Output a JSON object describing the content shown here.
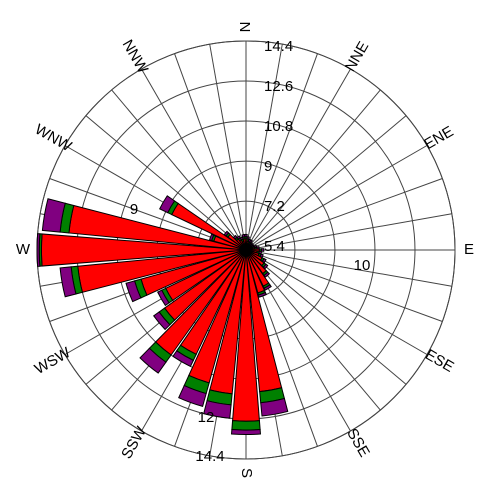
{
  "chart_data": {
    "type": "windrose",
    "x": [
      0,
      10,
      20,
      30,
      40,
      50,
      60,
      70,
      80,
      90,
      100,
      110,
      120,
      130,
      140,
      150,
      160,
      170,
      180,
      190,
      200,
      210,
      220,
      230,
      240,
      250,
      260,
      270,
      280,
      290,
      300,
      310,
      320,
      330,
      340,
      350
    ],
    "xlim": [
      0,
      360
    ],
    "xticks": [
      {
        "value": 0,
        "label": "N"
      },
      {
        "value": 30,
        "label": "NNE"
      },
      {
        "value": 60,
        "label": "ENE"
      },
      {
        "value": 90,
        "label": "E"
      },
      {
        "value": 120,
        "label": "ESE"
      },
      {
        "value": 150,
        "label": "SSE"
      },
      {
        "value": 180,
        "label": "S"
      },
      {
        "value": 210,
        "label": "SSW"
      },
      {
        "value": 240,
        "label": "WSW"
      },
      {
        "value": 270,
        "label": "W"
      },
      {
        "value": 300,
        "label": "WNW"
      },
      {
        "value": 330,
        "label": "NNW"
      }
    ],
    "ylim": [
      5,
      14.4
    ],
    "yticks": [
      5.4,
      7.2,
      9,
      10.8,
      12.6,
      14.4
    ],
    "grid": true,
    "series": [
      {
        "color": "#ff0000",
        "values": [
          5.5,
          5.4,
          5.3,
          5.3,
          5.2,
          5.2,
          5.2,
          5.3,
          5.4,
          5.6,
          5.5,
          5.6,
          5.8,
          6.0,
          6.3,
          6.8,
          7.0,
          11.4,
          12.7,
          11.5,
          11.2,
          10.2,
          10.8,
          9.5,
          9.0,
          9.9,
          12.6,
          14.2,
          13.0,
          6.5,
          8.7,
          6.0,
          5.6,
          5.5,
          5.4,
          5.5
        ]
      },
      {
        "color": "#008000",
        "values": [
          0.1,
          0.1,
          0.1,
          0.1,
          0.1,
          0.1,
          0.1,
          0.1,
          0.1,
          0.1,
          0.1,
          0.1,
          0.1,
          0.1,
          0.1,
          0.1,
          0.1,
          0.5,
          0.4,
          0.5,
          0.5,
          0.3,
          0.4,
          0.3,
          0.2,
          0.3,
          0.3,
          0.1,
          0.4,
          0.1,
          0.2,
          0.1,
          0.1,
          0.1,
          0.1,
          0.1
        ]
      },
      {
        "color": "#800080",
        "values": [
          0.1,
          0.1,
          0.1,
          0.1,
          0.1,
          0.1,
          0.1,
          0.1,
          0.1,
          0.1,
          0.1,
          0.1,
          0.1,
          0.1,
          0.1,
          0.1,
          0.1,
          0.6,
          0.2,
          0.6,
          0.6,
          0.3,
          0.6,
          0.3,
          0.2,
          0.4,
          0.5,
          0.1,
          0.8,
          0.1,
          0.4,
          0.1,
          0.1,
          0.1,
          0.1,
          0.1
        ]
      }
    ],
    "annotations": [
      "9",
      "10",
      "12",
      "14.4"
    ]
  }
}
